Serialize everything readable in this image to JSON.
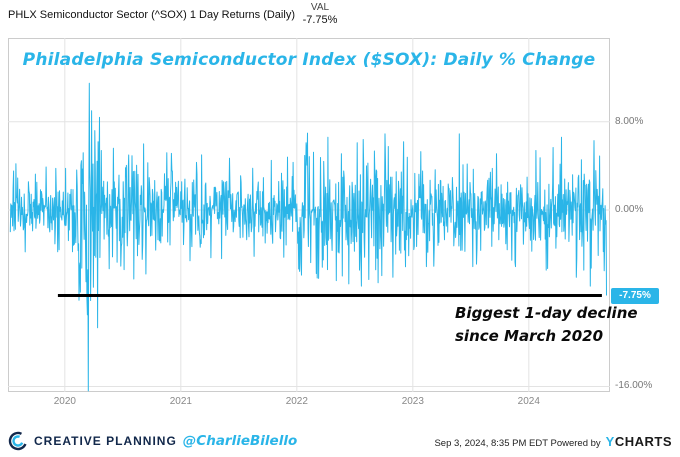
{
  "colors": {
    "accent": "#2ab5e8",
    "navy": "#12284b",
    "grid": "#e3e3e3",
    "border": "#cccccc",
    "ref_line": "#000000",
    "badge_bg": "#2ab5e8",
    "badge_text": "#ffffff"
  },
  "header": {
    "series_label": "PHLX Semiconductor Sector (^SOX) 1 Day Returns (Daily)",
    "val_label": "VAL",
    "val_value": "-7.75%"
  },
  "chart": {
    "title": "Philadelphia Semiconductor Index ($SOX): Daily % Change",
    "annotation": {
      "line1": "Biggest 1-day decline",
      "line2": "since March 2020"
    }
  },
  "chart_data": {
    "type": "line",
    "title": "Philadelphia Semiconductor Index ($SOX): Daily % Change",
    "series_name": "PHLX Semiconductor Sector (^SOX) 1 Day Returns (Daily)",
    "ylabel": "Daily % change",
    "x_range": [
      2019.51,
      2024.7
    ],
    "x_data_range": [
      2019.53,
      2024.67
    ],
    "ylim": [
      -16.5,
      15.6
    ],
    "grid": true,
    "legend": "none",
    "line_color": "#2ab5e8",
    "x_ticks": [
      2020,
      2021,
      2022,
      2023,
      2024
    ],
    "x_tick_labels": [
      "2020",
      "2021",
      "2022",
      "2023",
      "2024"
    ],
    "y_ticks": [
      8,
      0,
      -16
    ],
    "y_tick_labels": [
      "8.00%",
      "0.00%",
      "-16.00%"
    ],
    "last_value": -7.75,
    "ref_badge_label": "-7.75%",
    "ref_line": {
      "value": -7.75,
      "x_from": 2019.94,
      "x_to": 2024.63,
      "color": "#000000",
      "width": 3
    },
    "points_per_year": 250,
    "seed": 20240903,
    "volatility_segments": [
      {
        "from": 2019.51,
        "to": 2020.1,
        "sigma": 1.4
      },
      {
        "from": 2020.1,
        "to": 2020.32,
        "sigma": 4.2
      },
      {
        "from": 2020.32,
        "to": 2020.6,
        "sigma": 2.6
      },
      {
        "from": 2020.6,
        "to": 2021.0,
        "sigma": 2.0
      },
      {
        "from": 2021.0,
        "to": 2022.0,
        "sigma": 1.6
      },
      {
        "from": 2022.0,
        "to": 2023.0,
        "sigma": 2.6
      },
      {
        "from": 2023.0,
        "to": 2024.0,
        "sigma": 1.9
      },
      {
        "from": 2024.0,
        "to": 2024.7,
        "sigma": 2.1
      }
    ],
    "notable_points": [
      {
        "x": 2019.58,
        "y": 4.2
      },
      {
        "x": 2019.66,
        "y": -3.8
      },
      {
        "x": 2019.84,
        "y": 3.9
      },
      {
        "x": 2019.95,
        "y": -3.6
      },
      {
        "x": 2020.13,
        "y": -4.8
      },
      {
        "x": 2020.16,
        "y": 5.2
      },
      {
        "x": 2020.183,
        "y": -6.5
      },
      {
        "x": 2020.196,
        "y": -9.5
      },
      {
        "x": 2020.204,
        "y": -16.4
      },
      {
        "x": 2020.212,
        "y": 11.5
      },
      {
        "x": 2020.222,
        "y": -8.2
      },
      {
        "x": 2020.232,
        "y": 9.0
      },
      {
        "x": 2020.245,
        "y": -7.0
      },
      {
        "x": 2020.26,
        "y": 7.2
      },
      {
        "x": 2020.3,
        "y": 8.4
      },
      {
        "x": 2020.42,
        "y": 5.6
      },
      {
        "x": 2020.51,
        "y": -5.4
      },
      {
        "x": 2020.68,
        "y": 6.0
      },
      {
        "x": 2020.7,
        "y": -5.8
      },
      {
        "x": 2020.88,
        "y": 5.2
      },
      {
        "x": 2021.08,
        "y": -4.6
      },
      {
        "x": 2021.18,
        "y": 5.0
      },
      {
        "x": 2021.35,
        "y": -4.4
      },
      {
        "x": 2021.42,
        "y": 4.7
      },
      {
        "x": 2021.63,
        "y": -4.2
      },
      {
        "x": 2021.78,
        "y": 4.5
      },
      {
        "x": 2021.92,
        "y": 4.8
      },
      {
        "x": 2022.04,
        "y": -5.9
      },
      {
        "x": 2022.08,
        "y": 6.1
      },
      {
        "x": 2022.19,
        "y": -6.2
      },
      {
        "x": 2022.27,
        "y": 6.6
      },
      {
        "x": 2022.34,
        "y": -6.4
      },
      {
        "x": 2022.45,
        "y": -6.7
      },
      {
        "x": 2022.52,
        "y": 6.1
      },
      {
        "x": 2022.62,
        "y": -6.3
      },
      {
        "x": 2022.7,
        "y": -6.6
      },
      {
        "x": 2022.76,
        "y": 6.9
      },
      {
        "x": 2022.83,
        "y": -6.1
      },
      {
        "x": 2022.92,
        "y": 6.2
      },
      {
        "x": 2023.07,
        "y": 5.3
      },
      {
        "x": 2023.18,
        "y": -5.1
      },
      {
        "x": 2023.4,
        "y": 6.9
      },
      {
        "x": 2023.55,
        "y": -4.9
      },
      {
        "x": 2023.72,
        "y": 5.1
      },
      {
        "x": 2023.88,
        "y": -4.7
      },
      {
        "x": 2024.06,
        "y": 5.4
      },
      {
        "x": 2024.16,
        "y": -5.3
      },
      {
        "x": 2024.28,
        "y": 6.6
      },
      {
        "x": 2024.41,
        "y": -6.1
      },
      {
        "x": 2024.53,
        "y": -6.9
      },
      {
        "x": 2024.56,
        "y": 6.3
      },
      {
        "x": 2024.61,
        "y": 4.9
      },
      {
        "x": 2024.65,
        "y": -5.5
      },
      {
        "x": 2024.67,
        "y": -7.75
      }
    ]
  },
  "footer": {
    "brand": "CREATIVE PLANNING",
    "handle": "@CharlieBilello",
    "timestamp": "Sep 3, 2024, 8:35 PM EDT",
    "powered_by": "Powered by",
    "ycharts_y": "Y",
    "ycharts_rest": "CHARTS"
  }
}
